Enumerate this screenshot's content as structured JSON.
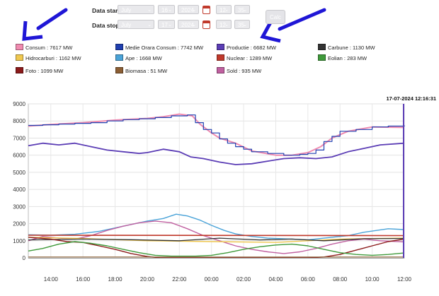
{
  "form": {
    "start_label": "Data start",
    "stop_label": "Data stop",
    "start": {
      "month": "July",
      "day": "16",
      "year": "2024",
      "hour": "12",
      "minute": "35"
    },
    "stop": {
      "month": "July",
      "day": "17",
      "year": "2024",
      "hour": "12",
      "minute": "35"
    },
    "calc_button": "Calc"
  },
  "legend": [
    {
      "label": "Consum : 7617 MW",
      "color": "#f08bb0"
    },
    {
      "label": "Medie Orara Consum : 7742 MW",
      "color": "#1f3fb0"
    },
    {
      "label": "Productie : 6682 MW",
      "color": "#5b3db5"
    },
    {
      "label": "Carbune : 1130 MW",
      "color": "#333333"
    },
    {
      "label": "Hidrocarburi : 1162 MW",
      "color": "#f0c850"
    },
    {
      "label": "Ape : 1668 MW",
      "color": "#4aa3d8"
    },
    {
      "label": "Nuclear : 1289 MW",
      "color": "#c0392b"
    },
    {
      "label": "Eolian : 283 MW",
      "color": "#3f9a3a"
    },
    {
      "label": "Foto : 1099 MW",
      "color": "#8b1a1a"
    },
    {
      "label": "Biomasa : 51 MW",
      "color": "#8b5e34"
    },
    {
      "label": "Sold : 935 MW",
      "color": "#c060a0"
    }
  ],
  "timestamp": "17-07-2024 12:16:31",
  "chart_data": {
    "type": "line",
    "ylim": [
      0,
      9000
    ],
    "yticks": [
      "0",
      "1000",
      "2000",
      "3000",
      "4000",
      "5000",
      "6000",
      "7000",
      "8000",
      "9000"
    ],
    "xlim": [
      12.6,
      36.0
    ],
    "xticks": [
      {
        "h": 14,
        "label": "14:00"
      },
      {
        "h": 16,
        "label": "16:00"
      },
      {
        "h": 18,
        "label": "18:00"
      },
      {
        "h": 20,
        "label": "20:00"
      },
      {
        "h": 22,
        "label": "22:00"
      },
      {
        "h": 24,
        "label": "00:00"
      },
      {
        "h": 26,
        "label": "02:00"
      },
      {
        "h": 28,
        "label": "04:00"
      },
      {
        "h": 30,
        "label": "06:00"
      },
      {
        "h": 32,
        "label": "08:00"
      },
      {
        "h": 34,
        "label": "10:00"
      },
      {
        "h": 36,
        "label": "12:00"
      }
    ],
    "series": [
      {
        "color": "#f08bb0",
        "width": 2,
        "points": [
          [
            12.6,
            7700
          ],
          [
            14,
            7800
          ],
          [
            16,
            7900
          ],
          [
            18,
            8050
          ],
          [
            19,
            8100
          ],
          [
            20,
            8150
          ],
          [
            21,
            8250
          ],
          [
            22,
            8400
          ],
          [
            22.8,
            8300
          ],
          [
            23.3,
            7800
          ],
          [
            24,
            7300
          ],
          [
            24.5,
            7000
          ],
          [
            25.5,
            6700
          ],
          [
            26.5,
            6250
          ],
          [
            28,
            6000
          ],
          [
            29,
            6000
          ],
          [
            30,
            6150
          ],
          [
            30.8,
            6500
          ],
          [
            31.5,
            7000
          ],
          [
            32.5,
            7400
          ],
          [
            34,
            7650
          ],
          [
            36,
            7620
          ]
        ]
      },
      {
        "color": "#1f3fb0",
        "width": 1.2,
        "step": true,
        "points": [
          [
            12.6,
            7740
          ],
          [
            13.5,
            7780
          ],
          [
            14.5,
            7820
          ],
          [
            15.5,
            7860
          ],
          [
            16.5,
            7900
          ],
          [
            17.5,
            8000
          ],
          [
            18.5,
            8080
          ],
          [
            19.5,
            8130
          ],
          [
            20.5,
            8200
          ],
          [
            21.5,
            8300
          ],
          [
            22.5,
            8350
          ],
          [
            23,
            7900
          ],
          [
            23.5,
            7500
          ],
          [
            24,
            7300
          ],
          [
            24.5,
            6950
          ],
          [
            25,
            6700
          ],
          [
            25.5,
            6500
          ],
          [
            26,
            6350
          ],
          [
            26.5,
            6200
          ],
          [
            27.5,
            6100
          ],
          [
            28.5,
            6000
          ],
          [
            29.5,
            6050
          ],
          [
            30,
            6100
          ],
          [
            30.5,
            6300
          ],
          [
            31,
            6800
          ],
          [
            31.5,
            7100
          ],
          [
            32,
            7400
          ],
          [
            33,
            7500
          ],
          [
            34,
            7650
          ],
          [
            35,
            7700
          ],
          [
            36,
            7742
          ]
        ]
      },
      {
        "color": "#5b3db5",
        "width": 1.8,
        "points": [
          [
            12.6,
            6550
          ],
          [
            13.5,
            6700
          ],
          [
            14.5,
            6600
          ],
          [
            15.5,
            6700
          ],
          [
            16.5,
            6500
          ],
          [
            17.5,
            6300
          ],
          [
            18.5,
            6200
          ],
          [
            19.5,
            6100
          ],
          [
            20,
            6150
          ],
          [
            21,
            6350
          ],
          [
            22,
            6200
          ],
          [
            22.7,
            5900
          ],
          [
            23.5,
            5800
          ],
          [
            24.5,
            5600
          ],
          [
            25.5,
            5450
          ],
          [
            26.5,
            5500
          ],
          [
            27.5,
            5650
          ],
          [
            28.5,
            5800
          ],
          [
            29.5,
            5850
          ],
          [
            30.5,
            5800
          ],
          [
            31.5,
            5900
          ],
          [
            32.5,
            6200
          ],
          [
            33.5,
            6400
          ],
          [
            34.5,
            6600
          ],
          [
            36,
            6700
          ]
        ]
      },
      {
        "color": "#4aa3d8",
        "width": 1.4,
        "points": [
          [
            12.6,
            1350
          ],
          [
            14,
            1320
          ],
          [
            15.5,
            1380
          ],
          [
            17,
            1550
          ],
          [
            18.5,
            1850
          ],
          [
            20,
            2150
          ],
          [
            21,
            2300
          ],
          [
            21.8,
            2550
          ],
          [
            22.5,
            2450
          ],
          [
            23.3,
            2200
          ],
          [
            24,
            1900
          ],
          [
            24.8,
            1600
          ],
          [
            25.5,
            1400
          ],
          [
            26.5,
            1250
          ],
          [
            27.5,
            1150
          ],
          [
            29,
            1100
          ],
          [
            30,
            1050
          ],
          [
            31,
            1150
          ],
          [
            32.5,
            1300
          ],
          [
            33.5,
            1500
          ],
          [
            35,
            1700
          ],
          [
            36,
            1650
          ]
        ]
      },
      {
        "color": "#c060a0",
        "width": 1.4,
        "points": [
          [
            12.6,
            1000
          ],
          [
            13.5,
            1250
          ],
          [
            14.5,
            1150
          ],
          [
            15.5,
            1100
          ],
          [
            16.5,
            1300
          ],
          [
            17.5,
            1600
          ],
          [
            18.5,
            1850
          ],
          [
            19.5,
            2050
          ],
          [
            20.5,
            2150
          ],
          [
            21.5,
            2050
          ],
          [
            22.5,
            1700
          ],
          [
            23.5,
            1300
          ],
          [
            24.5,
            1000
          ],
          [
            25.5,
            700
          ],
          [
            26.5,
            500
          ],
          [
            27.5,
            350
          ],
          [
            28.5,
            250
          ],
          [
            29.5,
            350
          ],
          [
            30.5,
            550
          ],
          [
            31.5,
            800
          ],
          [
            32.5,
            1000
          ],
          [
            33.5,
            1100
          ],
          [
            34.5,
            1000
          ],
          [
            36,
            935
          ]
        ]
      },
      {
        "color": "#c0392b",
        "width": 1.6,
        "points": [
          [
            12.6,
            1320
          ],
          [
            36,
            1300
          ]
        ]
      },
      {
        "color": "#f0c850",
        "width": 1.4,
        "points": [
          [
            12.6,
            1200
          ],
          [
            16,
            1130
          ],
          [
            20,
            1000
          ],
          [
            24,
            950
          ],
          [
            28,
            900
          ],
          [
            32,
            1100
          ],
          [
            36,
            1160
          ]
        ]
      },
      {
        "color": "#333333",
        "width": 1.3,
        "points": [
          [
            12.6,
            1050
          ],
          [
            16,
            1100
          ],
          [
            19,
            1060
          ],
          [
            22,
            1000
          ],
          [
            24.5,
            1150
          ],
          [
            27,
            1050
          ],
          [
            29,
            1100
          ],
          [
            31,
            1000
          ],
          [
            33.5,
            1120
          ],
          [
            36,
            1130
          ]
        ]
      },
      {
        "color": "#8b1a1a",
        "width": 1.4,
        "points": [
          [
            12.6,
            1200
          ],
          [
            14,
            1100
          ],
          [
            15,
            950
          ],
          [
            16,
            900
          ],
          [
            17,
            700
          ],
          [
            18,
            500
          ],
          [
            19,
            250
          ],
          [
            20,
            80
          ],
          [
            20.8,
            0
          ],
          [
            30,
            0
          ],
          [
            31,
            50
          ],
          [
            32,
            200
          ],
          [
            33,
            450
          ],
          [
            34,
            700
          ],
          [
            35,
            950
          ],
          [
            36,
            1100
          ]
        ]
      },
      {
        "color": "#3f9a3a",
        "width": 1.4,
        "points": [
          [
            12.6,
            400
          ],
          [
            13.5,
            550
          ],
          [
            14.5,
            800
          ],
          [
            15.5,
            950
          ],
          [
            16.5,
            850
          ],
          [
            17.5,
            700
          ],
          [
            18.5,
            500
          ],
          [
            19.5,
            300
          ],
          [
            20.5,
            150
          ],
          [
            21.5,
            100
          ],
          [
            23,
            100
          ],
          [
            24,
            150
          ],
          [
            25,
            300
          ],
          [
            26,
            500
          ],
          [
            27,
            650
          ],
          [
            28,
            750
          ],
          [
            29,
            800
          ],
          [
            30,
            700
          ],
          [
            31,
            500
          ],
          [
            32,
            300
          ],
          [
            33,
            200
          ],
          [
            34,
            150
          ],
          [
            35,
            200
          ],
          [
            36,
            283
          ]
        ]
      },
      {
        "color": "#8b5e34",
        "width": 1.2,
        "points": [
          [
            12.6,
            50
          ],
          [
            36,
            51
          ]
        ]
      }
    ]
  }
}
